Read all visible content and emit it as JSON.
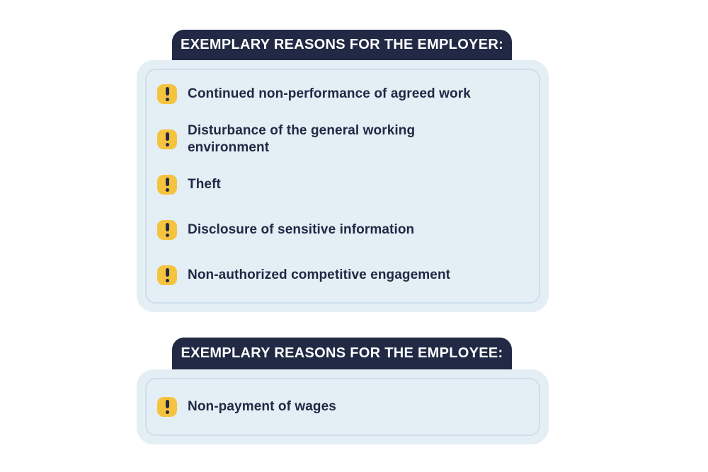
{
  "colors": {
    "background": "#ffffff",
    "navy": "#212944",
    "header_text": "#ffffff",
    "card_bg": "#e4eef5",
    "card_inner_border": "#ccdfeb",
    "icon_bg": "#f5c33d",
    "icon_glyph": "#232a45",
    "item_text": "#212944"
  },
  "sections": [
    {
      "id": "employer",
      "header": "EXEMPLARY REASONS FOR THE EMPLOYER:",
      "items": [
        "Continued non-performance of agreed work",
        "Disturbance of the general working\nenvironment",
        "Theft",
        "Disclosure of sensitive information",
        "Non-authorized competitive engagement"
      ]
    },
    {
      "id": "employee",
      "header": "EXEMPLARY REASONS FOR THE EMPLOYEE:",
      "items": [
        "Non-payment of wages"
      ]
    }
  ]
}
